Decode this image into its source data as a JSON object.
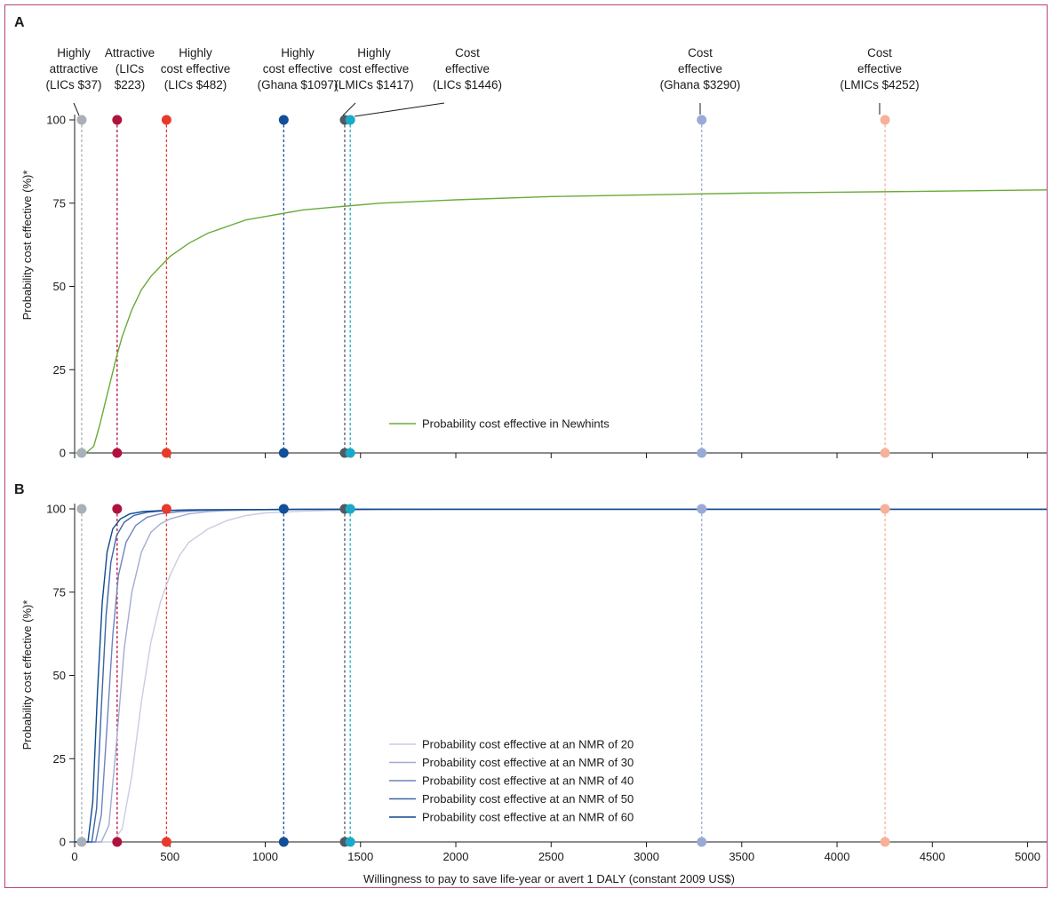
{
  "frame_color": "#b5447a",
  "chart_data": [
    {
      "panel": "A",
      "type": "line",
      "ylabel": "Probability cost effective (%)*",
      "xlabel": "",
      "xlim": [
        0,
        5100
      ],
      "ylim": [
        0,
        100
      ],
      "yticks": [
        "0",
        "25",
        "50",
        "75",
        "100"
      ],
      "xticks": [],
      "grid": false,
      "legend_position": "center-right",
      "series": [
        {
          "name": "Probability cost effective in Newhints",
          "color": "#6aaa3a",
          "x": [
            0,
            60,
            100,
            130,
            160,
            190,
            220,
            250,
            300,
            350,
            400,
            450,
            500,
            600,
            700,
            800,
            900,
            1000,
            1100,
            1200,
            1400,
            1600,
            2000,
            2500,
            3000,
            3500,
            4000,
            4500,
            5100
          ],
          "y": [
            0,
            0,
            2,
            8,
            15,
            22,
            29,
            35,
            43,
            49,
            53,
            56,
            59,
            63,
            66,
            68,
            70,
            71,
            72,
            73,
            74,
            75,
            76,
            77,
            77.5,
            78,
            78.3,
            78.6,
            79
          ]
        }
      ],
      "thresholds": [
        {
          "value": 37,
          "lines": [
            "Highly",
            "attractive",
            "(LICs $37)"
          ],
          "color": "#a9b0b8"
        },
        {
          "value": 223,
          "lines": [
            "Attractive",
            "(LICs",
            "$223)"
          ],
          "color": "#b0123e"
        },
        {
          "value": 482,
          "lines": [
            "Highly",
            "cost effective",
            "(LICs $482)"
          ],
          "color": "#e8392a"
        },
        {
          "value": 1097,
          "lines": [
            "Highly",
            "cost effective",
            "(Ghana $1097)"
          ],
          "color": "#114f98"
        },
        {
          "value": 1417,
          "lines": [
            "Highly",
            "cost effective",
            "(LMICs $1417)"
          ],
          "color": "#4f5a61"
        },
        {
          "value": 1446,
          "lines": [
            "Cost",
            "effective",
            "(LICs $1446)"
          ],
          "color": "#1aa9c8"
        },
        {
          "value": 3290,
          "lines": [
            "Cost",
            "effective",
            "(Ghana $3290)"
          ],
          "color": "#9aaad6"
        },
        {
          "value": 4252,
          "lines": [
            "Cost",
            "effective",
            "(LMICs $4252)"
          ],
          "color": "#f5b19b"
        }
      ]
    },
    {
      "panel": "B",
      "type": "line",
      "ylabel": "Probability cost effective (%)*",
      "xlabel": "Willingness to pay to save life-year or avert 1 DALY (constant 2009 US$)",
      "xlim": [
        0,
        5100
      ],
      "ylim": [
        0,
        100
      ],
      "yticks": [
        "0",
        "25",
        "50",
        "75",
        "100"
      ],
      "xticks": [
        "0",
        "500",
        "1000",
        "1500",
        "2000",
        "2500",
        "3000",
        "3500",
        "4000",
        "4500",
        "5000"
      ],
      "grid": false,
      "legend_position": "bottom-center",
      "series": [
        {
          "name": "Probability cost effective at an NMR of 20",
          "color": "#c9cde3",
          "x": [
            0,
            200,
            250,
            300,
            350,
            400,
            450,
            500,
            550,
            600,
            700,
            800,
            900,
            1000,
            1200,
            1400,
            1600,
            2000,
            5100
          ],
          "y": [
            0,
            0,
            4,
            20,
            42,
            60,
            72,
            80,
            86,
            90,
            94,
            96.5,
            98,
            98.8,
            99.3,
            99.6,
            99.8,
            99.9,
            99.9
          ]
        },
        {
          "name": "Probability cost effective at an NMR of 30",
          "color": "#a3abd2",
          "x": [
            0,
            140,
            180,
            220,
            260,
            300,
            350,
            400,
            450,
            500,
            600,
            700,
            800,
            1000,
            1200,
            1600,
            5100
          ],
          "y": [
            0,
            0,
            5,
            30,
            58,
            75,
            87,
            93,
            95.5,
            97,
            98.5,
            99.2,
            99.5,
            99.7,
            99.8,
            99.9,
            99.9
          ]
        },
        {
          "name": "Probability cost effective at an NMR of 40",
          "color": "#6f84bf",
          "x": [
            0,
            110,
            140,
            170,
            200,
            230,
            270,
            320,
            380,
            450,
            550,
            700,
            900,
            1200,
            5100
          ],
          "y": [
            0,
            0,
            8,
            35,
            62,
            80,
            90,
            95,
            97.5,
            98.5,
            99.2,
            99.6,
            99.8,
            99.9,
            99.9
          ]
        },
        {
          "name": "Probability cost effective at an NMR of 50",
          "color": "#3d66a8",
          "x": [
            0,
            90,
            115,
            140,
            165,
            190,
            220,
            260,
            310,
            380,
            480,
            650,
            900,
            1200,
            5100
          ],
          "y": [
            0,
            0,
            10,
            40,
            68,
            84,
            92,
            96,
            98,
            99,
            99.5,
            99.7,
            99.8,
            99.9,
            99.9
          ]
        },
        {
          "name": "Probability cost effective at an NMR of 60",
          "color": "#0f4a8e",
          "x": [
            0,
            70,
            95,
            120,
            145,
            170,
            200,
            240,
            290,
            360,
            450,
            600,
            900,
            1200,
            5100
          ],
          "y": [
            0,
            0,
            12,
            45,
            72,
            87,
            94,
            97,
            98.5,
            99.2,
            99.5,
            99.7,
            99.8,
            99.9,
            99.9
          ]
        }
      ],
      "thresholds": [
        {
          "value": 37,
          "color": "#a9b0b8"
        },
        {
          "value": 223,
          "color": "#b0123e"
        },
        {
          "value": 482,
          "color": "#e8392a"
        },
        {
          "value": 1097,
          "color": "#114f98"
        },
        {
          "value": 1417,
          "color": "#4f5a61"
        },
        {
          "value": 1446,
          "color": "#1aa9c8"
        },
        {
          "value": 3290,
          "color": "#9aaad6"
        },
        {
          "value": 4252,
          "color": "#f5b19b"
        }
      ]
    }
  ]
}
